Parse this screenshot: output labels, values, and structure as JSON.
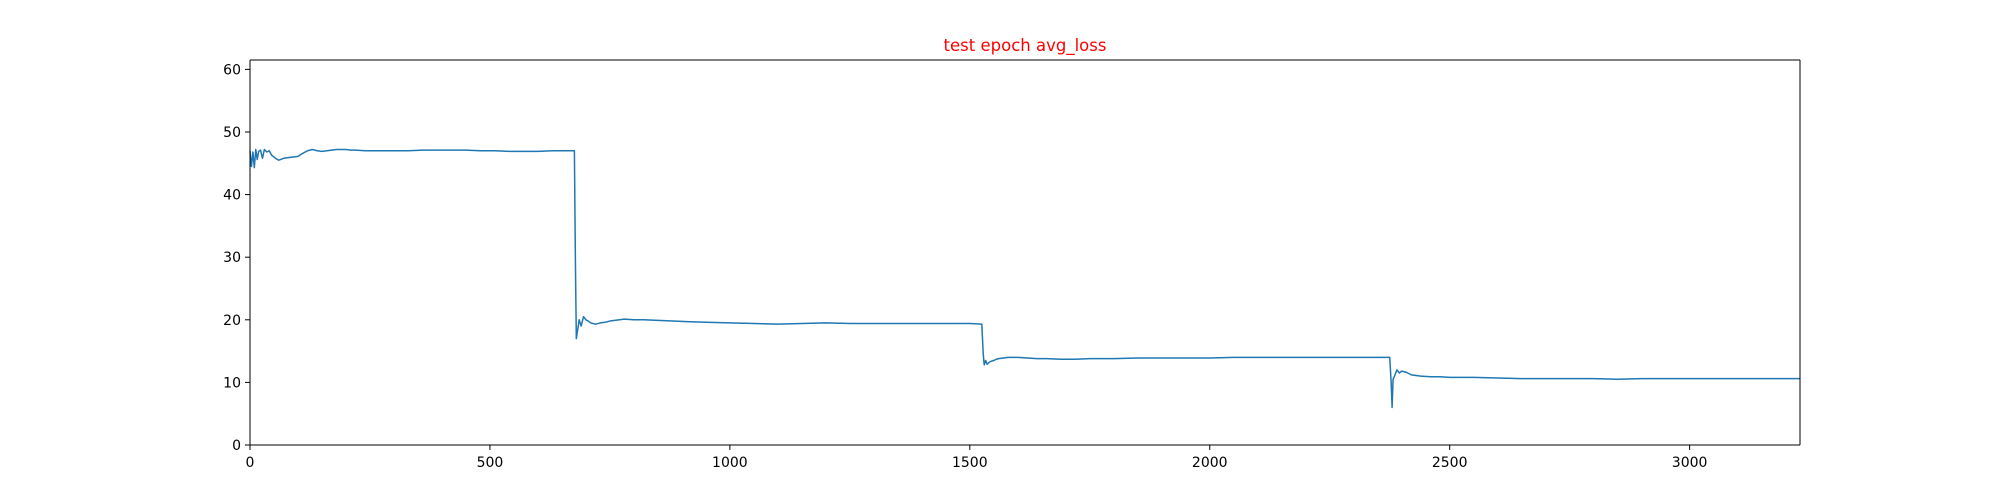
{
  "chart_data": {
    "type": "line",
    "title": "test epoch avg_loss",
    "title_color": "#ff0000",
    "xlabel": "",
    "ylabel": "",
    "xlim": [
      0,
      3230
    ],
    "ylim": [
      0,
      61.5
    ],
    "xticks": [
      0,
      500,
      1000,
      1500,
      2000,
      2500,
      3000
    ],
    "yticks": [
      0,
      10,
      20,
      30,
      40,
      50,
      60
    ],
    "grid": false,
    "legend": "none",
    "series": [
      {
        "color": "#1f77b4",
        "x": [
          0,
          3,
          6,
          9,
          12,
          15,
          18,
          22,
          26,
          30,
          35,
          40,
          45,
          50,
          55,
          60,
          70,
          80,
          90,
          100,
          110,
          120,
          130,
          140,
          150,
          160,
          170,
          180,
          190,
          200,
          210,
          220,
          240,
          260,
          280,
          300,
          330,
          360,
          390,
          420,
          450,
          480,
          510,
          540,
          570,
          600,
          630,
          660,
          676,
          678,
          680,
          683,
          686,
          690,
          695,
          700,
          705,
          710,
          720,
          730,
          740,
          750,
          760,
          770,
          780,
          800,
          820,
          850,
          880,
          910,
          950,
          1000,
          1050,
          1100,
          1150,
          1200,
          1250,
          1300,
          1350,
          1400,
          1450,
          1500,
          1525,
          1528,
          1530,
          1533,
          1536,
          1540,
          1545,
          1550,
          1555,
          1560,
          1570,
          1580,
          1600,
          1620,
          1640,
          1660,
          1690,
          1720,
          1750,
          1780,
          1800,
          1850,
          1900,
          1950,
          2000,
          2050,
          2100,
          2150,
          2200,
          2250,
          2300,
          2350,
          2375,
          2378,
          2380,
          2382,
          2385,
          2390,
          2395,
          2400,
          2410,
          2420,
          2440,
          2460,
          2480,
          2500,
          2550,
          2600,
          2650,
          2700,
          2750,
          2800,
          2850,
          2900,
          2950,
          3000,
          3050,
          3100,
          3150,
          3200,
          3230
        ],
        "y": [
          47.0,
          44.5,
          46.8,
          44.3,
          47.2,
          45.6,
          46.9,
          47.1,
          45.8,
          47.2,
          46.8,
          47.0,
          46.3,
          46.0,
          45.7,
          45.5,
          45.8,
          45.9,
          46.0,
          46.1,
          46.6,
          47.0,
          47.2,
          47.0,
          46.9,
          47.0,
          47.1,
          47.2,
          47.2,
          47.2,
          47.1,
          47.1,
          47.0,
          47.0,
          47.0,
          47.0,
          47.0,
          47.1,
          47.1,
          47.1,
          47.1,
          47.0,
          47.0,
          46.9,
          46.9,
          46.9,
          47.0,
          47.0,
          47.0,
          30.0,
          17.0,
          18.5,
          20.0,
          19.0,
          20.5,
          20.0,
          19.8,
          19.5,
          19.3,
          19.5,
          19.6,
          19.8,
          19.9,
          20.0,
          20.1,
          20.0,
          20.0,
          19.9,
          19.8,
          19.7,
          19.6,
          19.5,
          19.4,
          19.3,
          19.4,
          19.5,
          19.4,
          19.4,
          19.4,
          19.4,
          19.4,
          19.4,
          19.3,
          14.5,
          12.8,
          13.5,
          12.9,
          13.2,
          13.4,
          13.5,
          13.7,
          13.8,
          13.9,
          14.0,
          14.0,
          13.9,
          13.8,
          13.8,
          13.7,
          13.7,
          13.8,
          13.8,
          13.8,
          13.9,
          13.9,
          13.9,
          13.9,
          14.0,
          14.0,
          14.0,
          14.0,
          14.0,
          14.0,
          14.0,
          14.0,
          10.0,
          6.0,
          10.5,
          11.0,
          12.0,
          11.5,
          11.8,
          11.6,
          11.2,
          11.0,
          10.9,
          10.9,
          10.8,
          10.8,
          10.7,
          10.6,
          10.6,
          10.6,
          10.6,
          10.5,
          10.6,
          10.6,
          10.6,
          10.6,
          10.6,
          10.6,
          10.6,
          10.6
        ]
      }
    ]
  }
}
